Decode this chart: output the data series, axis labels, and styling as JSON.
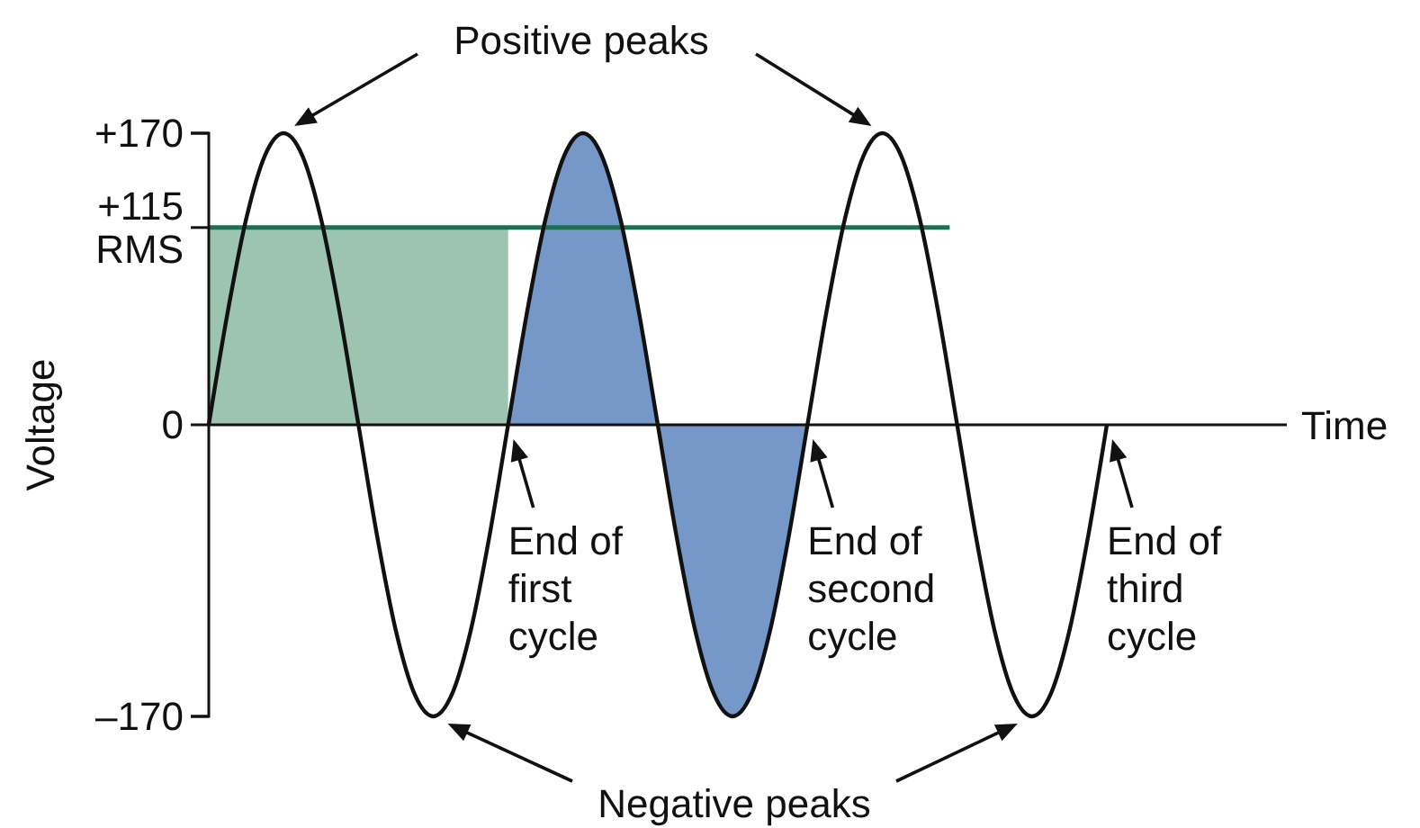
{
  "chart_data": {
    "type": "line",
    "xlabel": "Time",
    "ylabel": "Voltage",
    "categories": [
      null,
      null,
      null,
      null,
      null,
      null,
      null,
      null,
      null,
      null,
      null,
      null,
      null,
      null,
      null,
      null,
      null,
      null,
      null,
      null,
      null,
      null,
      null,
      null,
      null,
      null,
      null,
      null,
      null,
      null,
      null,
      null,
      null,
      null,
      null,
      null,
      null,
      null,
      null,
      null,
      null,
      null,
      null,
      null,
      null,
      null,
      null,
      null,
      null
    ],
    "ylim": [
      -170,
      170
    ],
    "yticks": [
      {
        "value": 170,
        "label": "+170"
      },
      {
        "value": 115,
        "label": "+115 RMS"
      },
      0,
      {
        "value": -170,
        "label": "–170"
      }
    ],
    "series": [
      {
        "type": "area",
        "color": "#9cc4b0",
        "values": [
          115,
          115,
          115,
          115,
          115,
          115,
          115,
          115,
          115,
          115,
          115,
          115,
          115,
          115,
          115,
          115,
          115,
          null,
          null,
          null,
          null,
          null,
          null,
          null,
          null,
          null,
          null,
          null,
          null,
          null,
          null,
          null,
          null,
          null,
          null,
          null,
          null,
          null,
          null,
          null,
          null,
          null,
          null,
          null,
          null,
          null,
          null,
          null,
          null
        ]
      },
      {
        "type": "area",
        "color": "#7598c8",
        "values": [
          null,
          null,
          null,
          null,
          null,
          null,
          null,
          null,
          null,
          null,
          null,
          null,
          null,
          null,
          null,
          null,
          0,
          65,
          120,
          157,
          170,
          157,
          120,
          65,
          0,
          -65,
          -120,
          -157,
          -170,
          -157,
          -120,
          -65,
          0,
          null,
          null,
          null,
          null,
          null,
          null,
          null,
          null,
          null,
          null,
          null,
          null,
          null,
          null,
          null,
          null
        ]
      },
      {
        "color": "#111111",
        "values": [
          0,
          65,
          120,
          157,
          170,
          157,
          120,
          65,
          0,
          -65,
          -120,
          -157,
          -170,
          -157,
          -120,
          -65,
          0,
          65,
          120,
          157,
          170,
          157,
          120,
          65,
          0,
          -65,
          -120,
          -157,
          -170,
          -157,
          -120,
          -65,
          0,
          65,
          120,
          157,
          170,
          157,
          120,
          65,
          0,
          -65,
          -120,
          -157,
          -170,
          -157,
          -120,
          -65,
          0
        ]
      }
    ],
    "ref_lines": [
      {
        "axis": "y",
        "value": 115,
        "color": "#1e6e50"
      }
    ],
    "grid": false,
    "marker": "none",
    "line_style": "solid",
    "annotations": [
      "Positive peaks",
      "Negative peaks",
      "End of first cycle",
      "End of second cycle",
      "End of third cycle"
    ]
  }
}
